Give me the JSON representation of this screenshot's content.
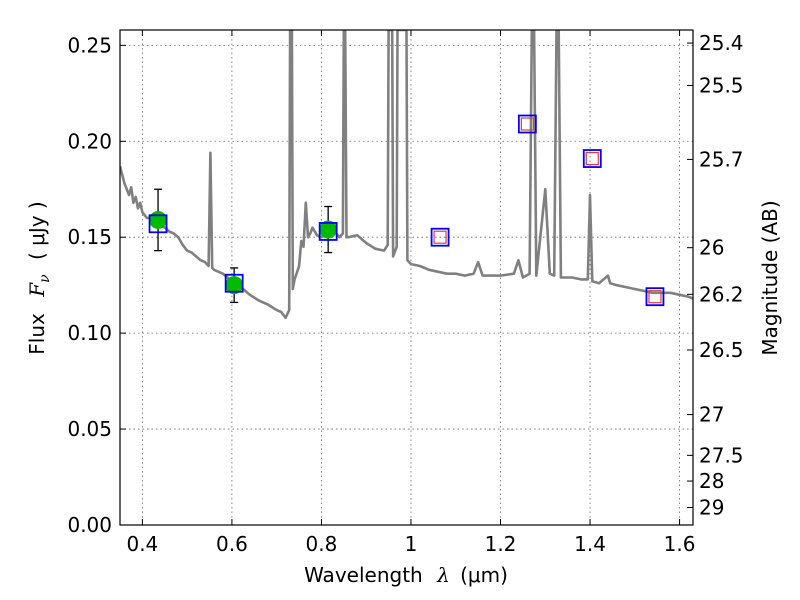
{
  "chart_data": {
    "type": "scatter",
    "xlabel_text": "Wavelength",
    "xlabel_symbol": "λ",
    "xlabel_unit": "(μm)",
    "ylabel_text": "Flux",
    "ylabel_symbol": "F",
    "ylabel_subscript": "ν",
    "ylabel_unit": "( μJy )",
    "y2label": "Magnitude (AB)",
    "xlim": [
      0.35,
      1.63
    ],
    "ylim": [
      0.0,
      0.258
    ],
    "grid": true,
    "xticks": [
      0.4,
      0.6,
      0.8,
      1.0,
      1.2,
      1.4,
      1.6
    ],
    "xtick_labels": [
      "0.4",
      "0.6",
      "0.8",
      "1",
      "1.2",
      "1.4",
      "1.6"
    ],
    "yticks": [
      0.0,
      0.05,
      0.1,
      0.15,
      0.2,
      0.25
    ],
    "ytick_labels": [
      "0.00",
      "0.05",
      "0.10",
      "0.15",
      "0.20",
      "0.25"
    ],
    "mag_ticks": [
      "25.4",
      "25.5",
      "25.7",
      "26",
      "26.2",
      "26.5",
      "27",
      "27.5",
      "28",
      "29"
    ],
    "series": [
      {
        "style": "line",
        "color": "#808080",
        "points": [
          [
            0.35,
            0.187
          ],
          [
            0.36,
            0.178
          ],
          [
            0.37,
            0.172
          ],
          [
            0.375,
            0.176
          ],
          [
            0.38,
            0.168
          ],
          [
            0.385,
            0.171
          ],
          [
            0.39,
            0.165
          ],
          [
            0.395,
            0.168
          ],
          [
            0.4,
            0.163
          ],
          [
            0.41,
            0.16
          ],
          [
            0.42,
            0.16
          ],
          [
            0.43,
            0.158
          ],
          [
            0.44,
            0.156
          ],
          [
            0.45,
            0.155
          ],
          [
            0.46,
            0.153
          ],
          [
            0.47,
            0.152
          ],
          [
            0.48,
            0.15
          ],
          [
            0.49,
            0.146
          ],
          [
            0.5,
            0.143
          ],
          [
            0.51,
            0.142
          ],
          [
            0.52,
            0.14
          ],
          [
            0.53,
            0.138
          ],
          [
            0.54,
            0.137
          ],
          [
            0.548,
            0.135
          ],
          [
            0.552,
            0.194
          ],
          [
            0.556,
            0.134
          ],
          [
            0.56,
            0.133
          ],
          [
            0.58,
            0.131
          ],
          [
            0.6,
            0.127
          ],
          [
            0.62,
            0.124
          ],
          [
            0.64,
            0.12
          ],
          [
            0.66,
            0.117
          ],
          [
            0.68,
            0.115
          ],
          [
            0.7,
            0.112
          ],
          [
            0.71,
            0.111
          ],
          [
            0.72,
            0.108
          ],
          [
            0.728,
            0.112
          ],
          [
            0.73,
            0.258
          ],
          [
            0.734,
            0.258
          ],
          [
            0.736,
            0.123
          ],
          [
            0.74,
            0.128
          ],
          [
            0.75,
            0.135
          ],
          [
            0.755,
            0.148
          ],
          [
            0.76,
            0.145
          ],
          [
            0.765,
            0.168
          ],
          [
            0.77,
            0.15
          ],
          [
            0.775,
            0.152
          ],
          [
            0.78,
            0.155
          ],
          [
            0.79,
            0.151
          ],
          [
            0.8,
            0.15
          ],
          [
            0.81,
            0.152
          ],
          [
            0.82,
            0.151
          ],
          [
            0.83,
            0.153
          ],
          [
            0.84,
            0.15
          ],
          [
            0.848,
            0.152
          ],
          [
            0.85,
            0.258
          ],
          [
            0.853,
            0.258
          ],
          [
            0.856,
            0.15
          ],
          [
            0.86,
            0.15
          ],
          [
            0.88,
            0.151
          ],
          [
            0.9,
            0.147
          ],
          [
            0.92,
            0.144
          ],
          [
            0.94,
            0.143
          ],
          [
            0.948,
            0.146
          ],
          [
            0.95,
            0.258
          ],
          [
            0.958,
            0.258
          ],
          [
            0.96,
            0.14
          ],
          [
            0.968,
            0.145
          ],
          [
            0.97,
            0.258
          ],
          [
            0.99,
            0.258
          ],
          [
            0.992,
            0.138
          ],
          [
            1.0,
            0.136
          ],
          [
            1.02,
            0.135
          ],
          [
            1.04,
            0.133
          ],
          [
            1.06,
            0.132
          ],
          [
            1.08,
            0.131
          ],
          [
            1.1,
            0.131
          ],
          [
            1.12,
            0.13
          ],
          [
            1.14,
            0.131
          ],
          [
            1.15,
            0.137
          ],
          [
            1.16,
            0.13
          ],
          [
            1.18,
            0.13
          ],
          [
            1.2,
            0.13
          ],
          [
            1.23,
            0.131
          ],
          [
            1.24,
            0.138
          ],
          [
            1.25,
            0.129
          ],
          [
            1.265,
            0.131
          ],
          [
            1.27,
            0.258
          ],
          [
            1.275,
            0.258
          ],
          [
            1.28,
            0.13
          ],
          [
            1.3,
            0.175
          ],
          [
            1.31,
            0.131
          ],
          [
            1.32,
            0.13
          ],
          [
            1.325,
            0.258
          ],
          [
            1.33,
            0.258
          ],
          [
            1.335,
            0.129
          ],
          [
            1.36,
            0.129
          ],
          [
            1.38,
            0.128
          ],
          [
            1.395,
            0.128
          ],
          [
            1.4,
            0.172
          ],
          [
            1.405,
            0.127
          ],
          [
            1.42,
            0.126
          ],
          [
            1.44,
            0.13
          ],
          [
            1.445,
            0.126
          ],
          [
            1.46,
            0.125
          ],
          [
            1.48,
            0.124
          ],
          [
            1.5,
            0.123
          ],
          [
            1.52,
            0.122
          ],
          [
            1.54,
            0.121
          ],
          [
            1.56,
            0.121
          ],
          [
            1.58,
            0.121
          ],
          [
            1.6,
            0.12
          ],
          [
            1.62,
            0.119
          ],
          [
            1.63,
            0.118
          ]
        ]
      },
      {
        "style": "filled-circle",
        "color": "#00bb00",
        "points": [
          [
            0.435,
            0.159
          ],
          [
            0.605,
            0.125
          ],
          [
            0.815,
            0.154
          ]
        ],
        "yerr": [
          0.016,
          0.009,
          0.012
        ]
      },
      {
        "style": "open-square",
        "color": "#0000ff",
        "points": [
          [
            0.435,
            0.157
          ],
          [
            0.605,
            0.126
          ],
          [
            0.815,
            0.153
          ],
          [
            1.065,
            0.15
          ],
          [
            1.26,
            0.209
          ],
          [
            1.405,
            0.191
          ],
          [
            1.545,
            0.119
          ]
        ]
      },
      {
        "style": "open-square",
        "color": "#e03c3c",
        "points": [
          [
            1.065,
            0.15
          ],
          [
            1.26,
            0.209
          ],
          [
            1.405,
            0.191
          ],
          [
            1.545,
            0.119
          ]
        ]
      }
    ]
  }
}
